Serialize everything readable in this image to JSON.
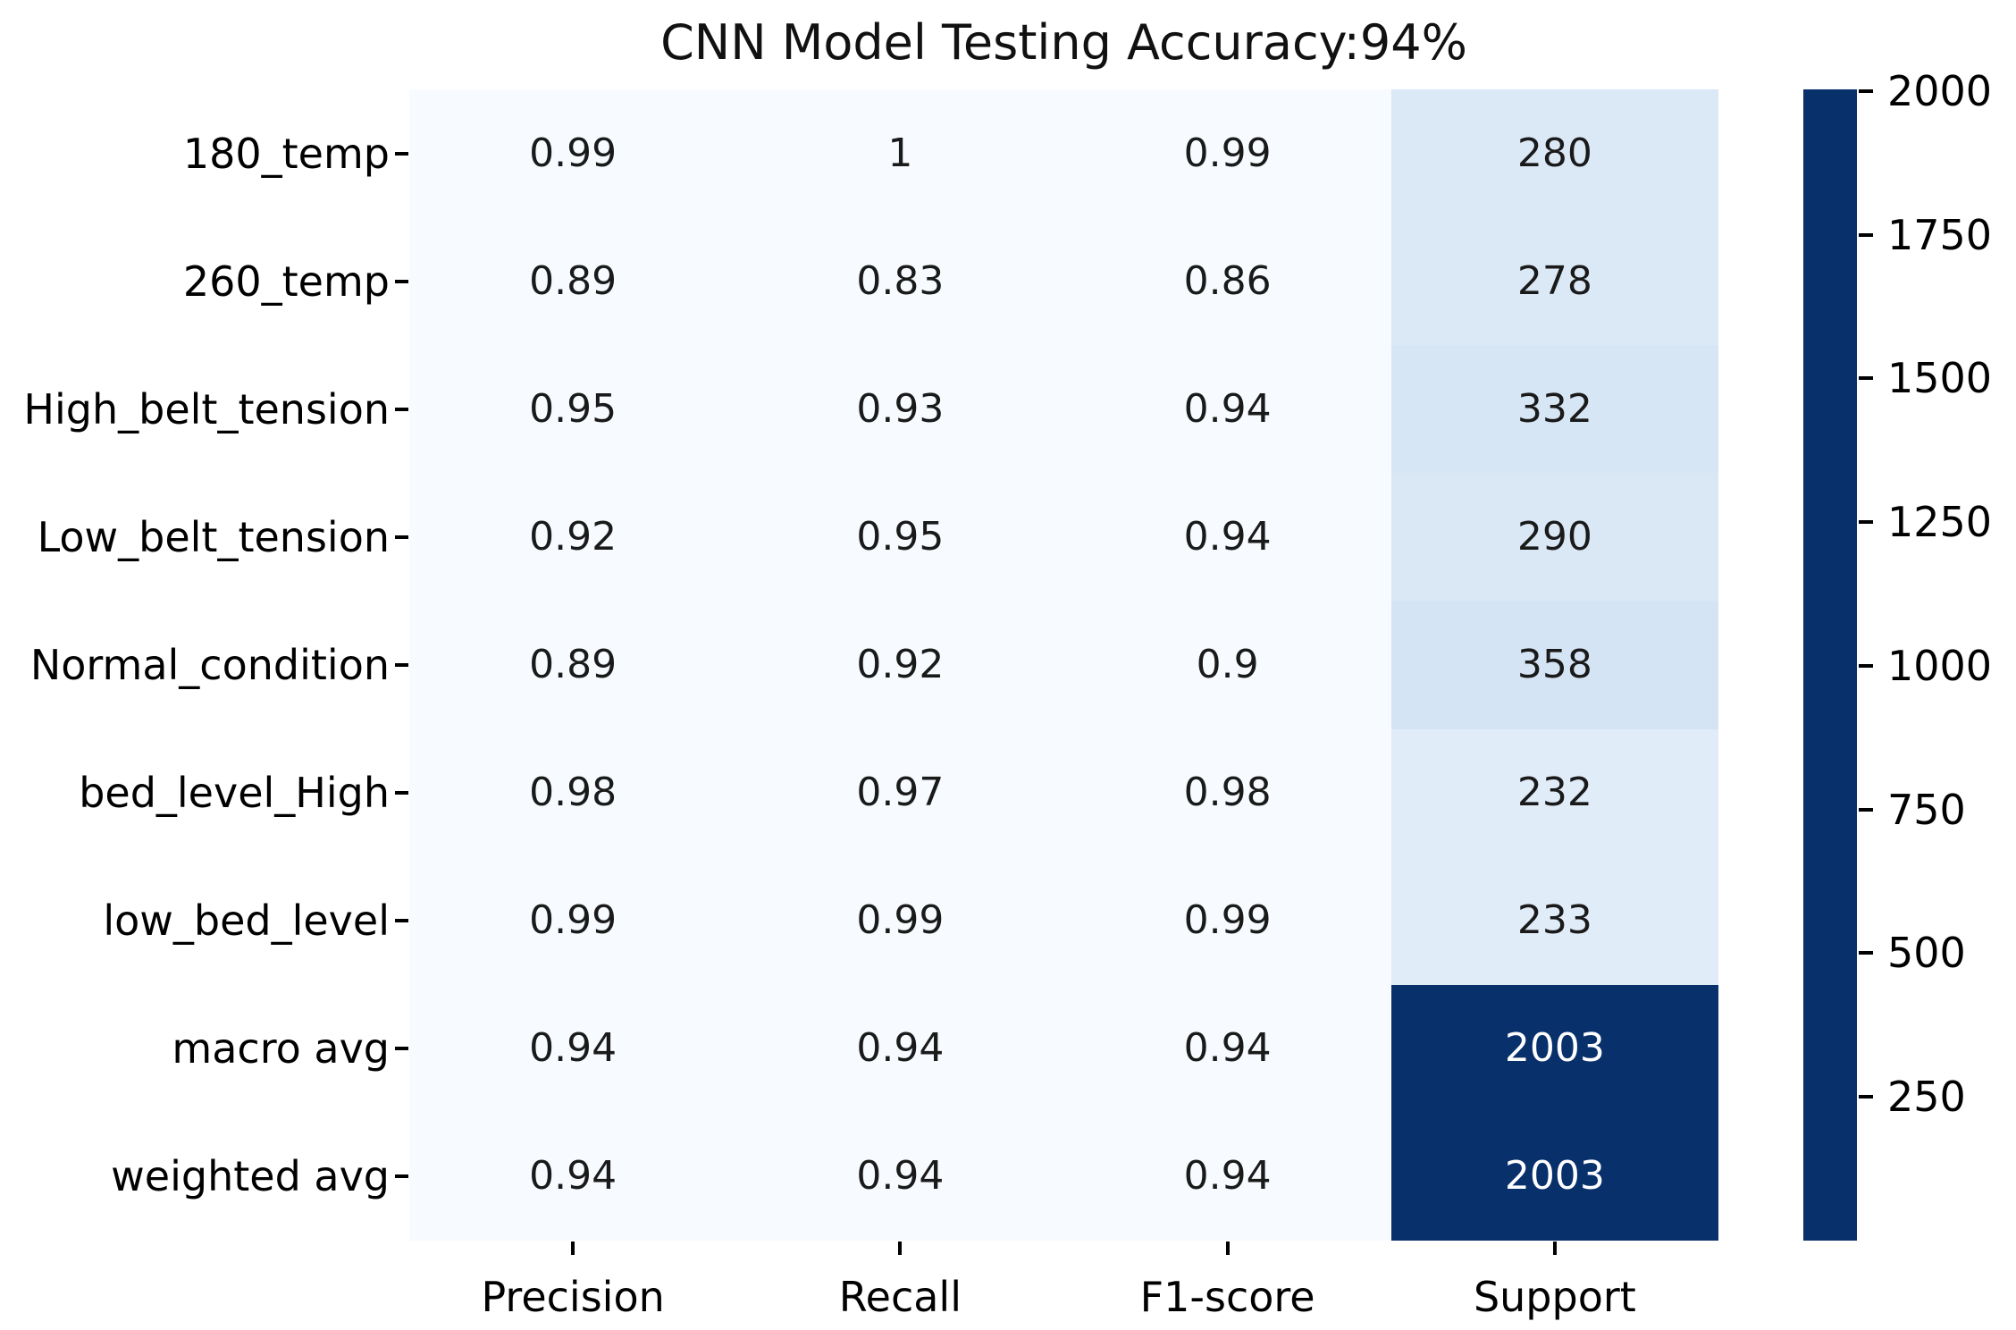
{
  "title": "CNN Model Testing Accuracy:94%",
  "chart_data": {
    "type": "heatmap",
    "title": "CNN Model Testing Accuracy:94%",
    "rows": [
      "180_temp",
      "260_temp",
      "High_belt_tension",
      "Low_belt_tension",
      "Normal_condition",
      "bed_level_High",
      "low_bed_level",
      "macro avg",
      "weighted avg"
    ],
    "columns": [
      "Precision",
      "Recall",
      "F1-score",
      "Support"
    ],
    "values": [
      [
        "0.99",
        "1",
        "0.99",
        "280"
      ],
      [
        "0.89",
        "0.83",
        "0.86",
        "278"
      ],
      [
        "0.95",
        "0.93",
        "0.94",
        "332"
      ],
      [
        "0.92",
        "0.95",
        "0.94",
        "290"
      ],
      [
        "0.89",
        "0.92",
        "0.9",
        "358"
      ],
      [
        "0.98",
        "0.97",
        "0.98",
        "232"
      ],
      [
        "0.99",
        "0.99",
        "0.99",
        "233"
      ],
      [
        "0.94",
        "0.94",
        "0.94",
        "2003"
      ],
      [
        "0.94",
        "0.94",
        "0.94",
        "2003"
      ]
    ],
    "colormap": "Blues",
    "grid": false,
    "legend_position": "right-colorbar",
    "colorbar": {
      "vmin": 0,
      "vmax": 2003,
      "tick_labels": [
        "2000",
        "1750",
        "1500",
        "1250",
        "1000",
        "750",
        "500",
        "250"
      ],
      "min_color": "#f7fbff",
      "max_color": "#08306b"
    },
    "annotation_text_dark": "#1a1a1a",
    "annotation_text_light": "#ffffff"
  }
}
